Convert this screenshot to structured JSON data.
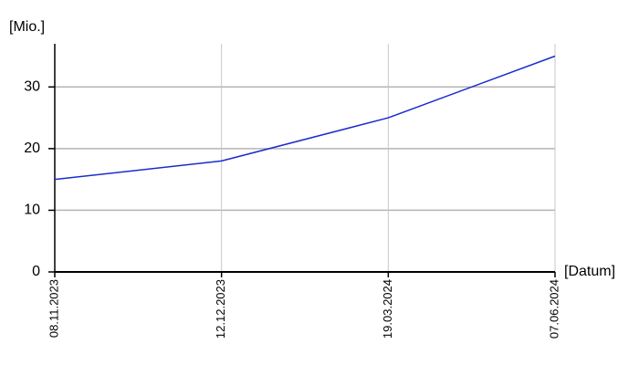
{
  "chart_data": {
    "type": "line",
    "y_label": "[Mio.]",
    "x_label": "[Datum]",
    "categories": [
      "08.11.2023",
      "12.12.2023",
      "19.03.2024",
      "07.06.2024"
    ],
    "series": [
      {
        "name": "Mio.",
        "color": "#1a2ccc",
        "values": [
          15,
          18,
          25,
          35
        ]
      }
    ],
    "ylim": [
      0,
      37
    ],
    "yticks": [
      0,
      10,
      20,
      30
    ],
    "grid": true
  }
}
